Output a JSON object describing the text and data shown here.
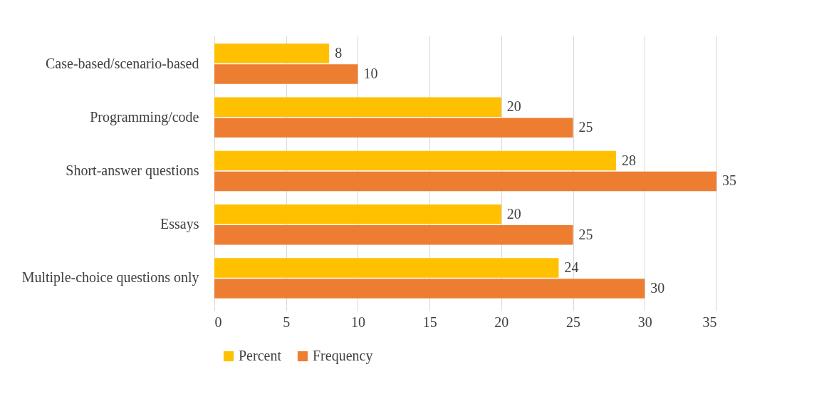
{
  "chart_data": {
    "type": "bar",
    "orientation": "horizontal",
    "categories": [
      "Case-based/scenario-based",
      "Programming/code",
      "Short-answer questions",
      "Essays",
      "Multiple-choice questions only"
    ],
    "series": [
      {
        "name": "Percent",
        "color": "#ffc000",
        "values": [
          8,
          20,
          28,
          20,
          24
        ]
      },
      {
        "name": "Frequency",
        "color": "#ed7d31",
        "values": [
          10,
          25,
          35,
          25,
          30
        ]
      }
    ],
    "xlim": [
      0,
      35
    ],
    "xticks": [
      0,
      5,
      10,
      15,
      20,
      25,
      30,
      35
    ],
    "grid": "x",
    "legend": "bottom",
    "data_labels": true
  }
}
